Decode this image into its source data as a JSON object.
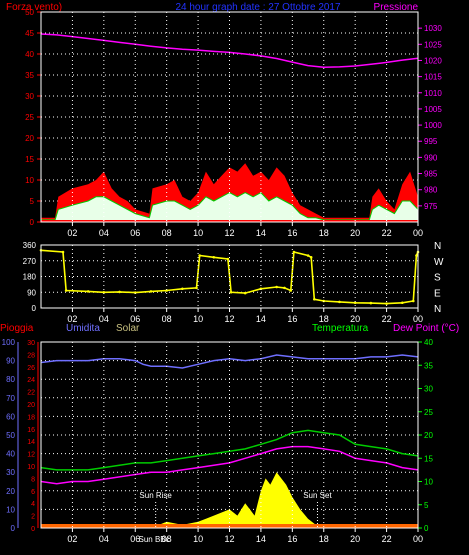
{
  "header": {
    "left": "Forza vento)",
    "center": "24 hour graph date : 27 Ottobre 2017",
    "right": "Pressione"
  },
  "colors": {
    "red": "#ff0000",
    "white": "#ffffff",
    "green": "#00cc00",
    "magenta": "#ff00ff",
    "yellow": "#ffff00",
    "blue": "#6f6fff",
    "lime": "#00ff00",
    "olive": "#c8c080",
    "grid": "#ffffff"
  },
  "x_ticks": [
    "02",
    "04",
    "06",
    "08",
    "10",
    "12",
    "14",
    "16",
    "18",
    "20",
    "22",
    "00"
  ],
  "chart_data": [
    {
      "type": "line",
      "name": "wind-pressure",
      "left_axis": {
        "label": "Forza vento)",
        "range": [
          0,
          50
        ],
        "ticks": [
          0,
          5,
          10,
          15,
          20,
          25,
          30,
          35,
          40,
          45,
          50
        ]
      },
      "right_axis": {
        "label": "Pressione",
        "range": [
          970,
          1035
        ],
        "ticks": [
          975,
          980,
          985,
          990,
          995,
          1000,
          1005,
          1010,
          1015,
          1020,
          1025,
          1030
        ]
      },
      "series": [
        {
          "name": "Pressione",
          "axis": "right",
          "x": [
            0,
            1,
            2,
            3,
            4,
            5,
            6,
            7,
            8,
            9,
            10,
            11,
            12,
            13,
            14,
            15,
            16,
            17,
            18,
            19,
            20,
            21,
            22,
            23,
            24
          ],
          "values": [
            1028.2,
            1027.9,
            1027.4,
            1026.8,
            1026.2,
            1025.6,
            1025,
            1024.4,
            1023.9,
            1023.5,
            1023.2,
            1022.8,
            1022.5,
            1022,
            1021.4,
            1020.6,
            1019.5,
            1018.4,
            1017.9,
            1018,
            1018.3,
            1018.8,
            1019.4,
            1020.1,
            1020.7
          ]
        },
        {
          "name": "Raffica",
          "axis": "left",
          "x": [
            0,
            0.9,
            1.1,
            2,
            3,
            3.5,
            4,
            4.5,
            5,
            5.5,
            6,
            6.9,
            7.1,
            8,
            8.5,
            9,
            9.5,
            10,
            10.5,
            11,
            11.5,
            12,
            12.5,
            13,
            13.5,
            14,
            14.5,
            15,
            15.5,
            16,
            16.5,
            17,
            17.5,
            18,
            19,
            20,
            20.9,
            21.1,
            21.5,
            22,
            22.5,
            23,
            23.5,
            24
          ],
          "values": [
            1,
            1,
            6,
            8,
            9,
            10,
            12,
            8,
            6,
            5,
            3,
            2,
            8,
            9,
            10,
            6,
            5,
            7,
            12,
            9,
            11,
            13,
            12,
            14,
            11,
            12,
            10,
            13,
            11,
            7,
            4,
            3,
            2,
            1,
            1,
            1,
            1,
            6,
            8,
            5,
            3,
            9,
            12,
            6
          ]
        },
        {
          "name": "Vento medio",
          "axis": "left",
          "x": [
            0,
            0.9,
            1.1,
            2,
            3,
            3.5,
            4,
            4.5,
            5,
            5.5,
            6,
            6.9,
            7.1,
            8,
            8.5,
            9,
            9.5,
            10,
            10.5,
            11,
            11.5,
            12,
            12.5,
            13,
            13.5,
            14,
            14.5,
            15,
            15.5,
            16,
            16.5,
            17,
            17.5,
            18,
            19,
            20,
            20.9,
            21.1,
            21.5,
            22,
            22.5,
            23,
            23.5,
            24
          ],
          "values": [
            0.5,
            0.5,
            3,
            4,
            5,
            6,
            6,
            5,
            4,
            3,
            2,
            1,
            4,
            5,
            5,
            4,
            3,
            4,
            6,
            5,
            6,
            7,
            6,
            7,
            6,
            7,
            5,
            6,
            5,
            4,
            2,
            1,
            1,
            0.5,
            0.5,
            0.5,
            0.5,
            3,
            4,
            3,
            2,
            5,
            5,
            3
          ]
        }
      ]
    },
    {
      "type": "scatter",
      "name": "wind-direction",
      "left_axis": {
        "range": [
          0,
          360
        ],
        "ticks": [
          0,
          90,
          180,
          270,
          360
        ]
      },
      "right_labels": [
        "N",
        "W",
        "S",
        "E",
        "N"
      ],
      "series": [
        {
          "name": "Direzione",
          "x": [
            0,
            1.4,
            1.6,
            3,
            4,
            5,
            6,
            7,
            8,
            9,
            9.9,
            10.1,
            11,
            11.9,
            12.1,
            13,
            14,
            15,
            15.5,
            15.9,
            16.1,
            17,
            17.2,
            17.4,
            18,
            19,
            20,
            21,
            22,
            23,
            23.7,
            23.9,
            24
          ],
          "values": [
            330,
            320,
            100,
            95,
            90,
            92,
            88,
            95,
            100,
            110,
            115,
            300,
            290,
            280,
            90,
            85,
            110,
            120,
            115,
            100,
            320,
            300,
            290,
            50,
            40,
            35,
            30,
            28,
            25,
            30,
            40,
            300,
            320
          ]
        }
      ]
    },
    {
      "type": "line",
      "name": "weather",
      "left_axis_outer": {
        "label": "Umidita",
        "range": [
          0,
          100
        ],
        "ticks": [
          0,
          10,
          20,
          30,
          40,
          50,
          60,
          70,
          80,
          90,
          100
        ]
      },
      "left_axis_inner": {
        "label": "Pioggia",
        "range": [
          0,
          30
        ],
        "ticks": [
          0,
          2,
          4,
          6,
          8,
          10,
          12,
          14,
          16,
          18,
          20,
          22,
          24,
          26,
          28,
          30
        ]
      },
      "right_axis": {
        "label": "Temperatura",
        "range": [
          0,
          40
        ],
        "ticks": [
          0,
          5,
          10,
          15,
          20,
          25,
          30,
          35,
          40
        ]
      },
      "extra_labels": {
        "solar": "Solar",
        "dewpoint": "Dew Point (°C)"
      },
      "annotations": {
        "sunrise": "Sun Rise",
        "sunset": "Sun Set",
        "sunbbc": "Sun BBc",
        "sunrise_x": 7.3,
        "sunset_x": 17.6
      },
      "series": [
        {
          "name": "Umidita",
          "axis": "outer",
          "x": [
            0,
            1,
            2,
            3,
            4,
            5,
            6,
            6.5,
            7,
            8,
            9,
            10,
            11,
            12,
            13,
            14,
            15,
            16,
            17,
            18,
            19,
            20,
            21,
            22,
            23,
            24
          ],
          "values": [
            89,
            90,
            90,
            90,
            91,
            91,
            90,
            88,
            87,
            87,
            86,
            88,
            90,
            91,
            90,
            91,
            93,
            92,
            91,
            91,
            91,
            91,
            92,
            92,
            93,
            92
          ]
        },
        {
          "name": "Temperatura",
          "axis": "right",
          "x": [
            0,
            1,
            2,
            3,
            4,
            5,
            6,
            7,
            8,
            9,
            10,
            11,
            12,
            13,
            14,
            15,
            16,
            17,
            18,
            19,
            20,
            21,
            22,
            23,
            24
          ],
          "values": [
            13,
            12.5,
            12.5,
            12.5,
            13,
            13.5,
            14,
            14,
            14.5,
            15,
            15.5,
            16,
            16.5,
            17,
            18,
            19,
            20.5,
            21,
            20.5,
            20,
            18,
            17.5,
            17,
            16,
            15.5
          ]
        },
        {
          "name": "Dew Point",
          "axis": "right",
          "x": [
            0,
            1,
            2,
            3,
            4,
            5,
            6,
            7,
            8,
            9,
            10,
            11,
            12,
            13,
            14,
            15,
            16,
            17,
            18,
            19,
            20,
            21,
            22,
            23,
            24
          ],
          "values": [
            10,
            9.5,
            10,
            10,
            10.5,
            11,
            11.5,
            12,
            12,
            12.5,
            13,
            13.5,
            14,
            15,
            16,
            17,
            17.5,
            17.5,
            17,
            16.5,
            15,
            14.5,
            14,
            13,
            12.5
          ]
        },
        {
          "name": "Solar",
          "axis": "inner",
          "x": [
            0,
            7,
            7.5,
            8,
            9,
            10,
            10.5,
            11,
            11.5,
            12,
            12.5,
            13,
            13.3,
            13.6,
            14,
            14.3,
            14.6,
            15,
            15.3,
            15.6,
            16,
            16.5,
            17,
            17.5,
            18,
            24
          ],
          "values": [
            0,
            0,
            0.5,
            1,
            0.5,
            1,
            1.5,
            2,
            2.5,
            3,
            2,
            4,
            3,
            2,
            6,
            8,
            7,
            9,
            8,
            7,
            5,
            3,
            1.5,
            0.5,
            0,
            0
          ]
        },
        {
          "name": "Pioggia",
          "axis": "inner",
          "x": [
            0,
            24
          ],
          "values": [
            0,
            0
          ]
        }
      ]
    }
  ]
}
